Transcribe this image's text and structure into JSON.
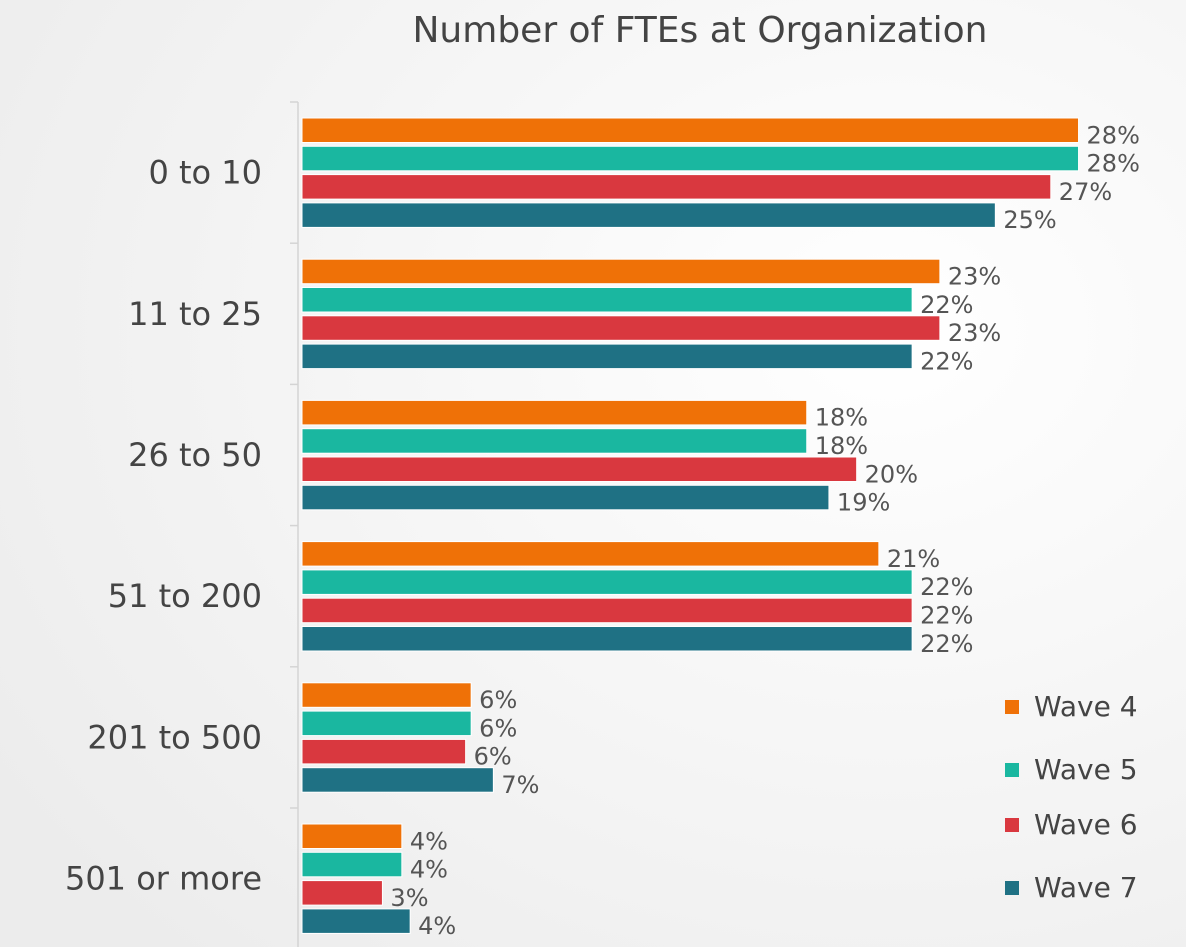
{
  "chart_data": {
    "type": "hbar",
    "title": "Number of FTEs at Organization",
    "categories": [
      "0 to 10",
      "11 to 25",
      "26 to 50",
      "51 to 200",
      "201 to 500",
      "501 or more"
    ],
    "series": [
      {
        "name": "Wave 4",
        "color": "#ef7107",
        "values": [
          28,
          23,
          18.2,
          20.8,
          6.1,
          3.6
        ],
        "value_labels": [
          "28%",
          "23%",
          "18%",
          "21%",
          "6%",
          "4%"
        ]
      },
      {
        "name": "Wave 5",
        "color": "#1ab7a0",
        "values": [
          28,
          22,
          18.2,
          22,
          6.1,
          3.6
        ],
        "value_labels": [
          "28%",
          "22%",
          "18%",
          "22%",
          "6%",
          "4%"
        ]
      },
      {
        "name": "Wave 6",
        "color": "#d9383f",
        "values": [
          27,
          23,
          20,
          22,
          5.9,
          2.9
        ],
        "value_labels": [
          "27%",
          "23%",
          "20%",
          "22%",
          "6%",
          "3%"
        ]
      },
      {
        "name": "Wave 7",
        "color": "#1f7184",
        "values": [
          25,
          22,
          19,
          22,
          6.9,
          3.9
        ],
        "value_labels": [
          "25%",
          "22%",
          "19%",
          "22%",
          "7%",
          "4%"
        ]
      }
    ],
    "xlim": [
      0,
      30
    ],
    "legend": "lower right"
  }
}
